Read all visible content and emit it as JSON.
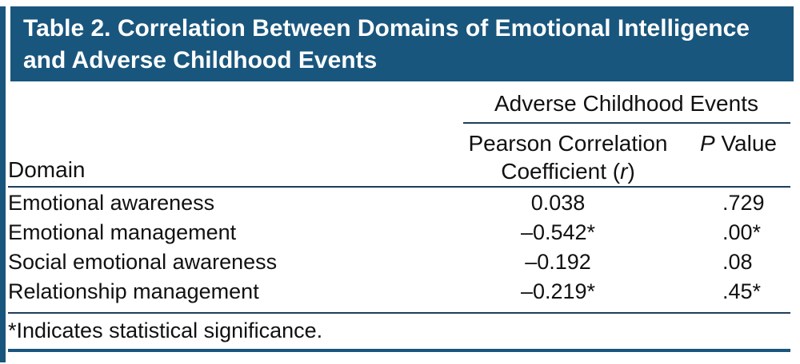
{
  "colors": {
    "accent": "#19567D",
    "rule": "#1F3D5C"
  },
  "title": "Table 2. Correlation Between Domains of Emotional Intelligence and Adverse Childhood Events",
  "table": {
    "group_header": "Adverse Childhood Events",
    "columns": {
      "domain": "Domain",
      "pearson_line1": "Pearson Correlation",
      "pearson_prefix": "Coefficient (",
      "pearson_italic": "r",
      "pearson_suffix": ")",
      "p_italic": "P",
      "p_rest": " Value"
    },
    "rows": [
      {
        "domain": "Emotional awareness",
        "r": "0.038",
        "p": ".729"
      },
      {
        "domain": "Emotional management",
        "r": "–0.542*",
        "p": ".00*"
      },
      {
        "domain": "Social emotional awareness",
        "r": "–0.192",
        "p": ".08"
      },
      {
        "domain": "Relationship management",
        "r": "–0.219*",
        "p": ".45*"
      }
    ],
    "footnote": "*Indicates statistical significance."
  }
}
